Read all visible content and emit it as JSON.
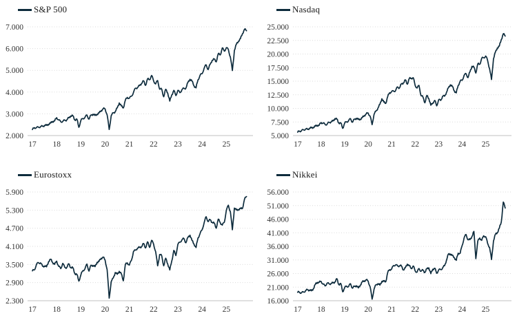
{
  "page": {
    "background": "#ffffff"
  },
  "style": {
    "line_color": "#0d2b3c",
    "grid_color": "#d9d9d9",
    "axis_color": "#c0c0c0",
    "tick_label_color": "#333333",
    "legend_text_color": "#1a1a1a",
    "grid_style": "dotted-horizontal"
  },
  "chart_data": [
    {
      "type": "line",
      "title": "S&P 500",
      "legend_position": "top-left",
      "grid": "horizontal-dotted",
      "x_start_year": 2017,
      "x_step_months": 1,
      "xlim": [
        2016.8,
        2026.1
      ],
      "ylim": [
        2000,
        7000
      ],
      "ytick_values": [
        7000,
        6000,
        5000,
        4000,
        3000,
        2000
      ],
      "ytick_labels": [
        "7.000",
        "6.000",
        "5.000",
        "4.000",
        "3.000",
        "2.000"
      ],
      "xtick_values": [
        2017,
        2018,
        2019,
        2020,
        2021,
        2022,
        2023,
        2024,
        2025
      ],
      "xtick_labels": [
        "17",
        "18",
        "19",
        "20",
        "21",
        "22",
        "23",
        "24",
        "25"
      ],
      "values": [
        2275,
        2364,
        2363,
        2384,
        2412,
        2423,
        2470,
        2472,
        2519,
        2575,
        2648,
        2674,
        2824,
        2714,
        2641,
        2648,
        2705,
        2718,
        2816,
        2902,
        2914,
        2712,
        2760,
        2380,
        2704,
        2784,
        2834,
        2946,
        2752,
        2942,
        2980,
        2926,
        2977,
        3038,
        3141,
        3231,
        3226,
        2954,
        2280,
        2912,
        3044,
        3100,
        3271,
        3500,
        3363,
        3270,
        3622,
        3756,
        3714,
        3811,
        3973,
        4181,
        4204,
        4298,
        4395,
        4523,
        4308,
        4605,
        4567,
        4766,
        4516,
        4374,
        4530,
        4132,
        4132,
        3785,
        4130,
        3955,
        3586,
        3872,
        4080,
        3840,
        4077,
        3970,
        4109,
        4169,
        4180,
        4450,
        4589,
        4508,
        4288,
        4194,
        4568,
        4770,
        4846,
        5096,
        5254,
        5036,
        5278,
        5460,
        5522,
        5390,
        5762,
        5705,
        6032,
        5882,
        6041,
        5955,
        5612,
        4990,
        5912,
        6205,
        6340,
        6460,
        6688,
        6890,
        6820
      ]
    },
    {
      "type": "line",
      "title": "Nasdaq",
      "legend_position": "top-left",
      "grid": "horizontal-dotted",
      "x_start_year": 2017,
      "x_step_months": 1,
      "xlim": [
        2016.8,
        2026.1
      ],
      "ylim": [
        5000,
        25000
      ],
      "ytick_values": [
        25000,
        22500,
        20000,
        17500,
        15000,
        12500,
        10000,
        7500,
        5000
      ],
      "ytick_labels": [
        "25.000",
        "22.500",
        "20.000",
        "17.500",
        "15.000",
        "12.500",
        "10.000",
        "7.500",
        "5.000"
      ],
      "xtick_values": [
        2017,
        2018,
        2019,
        2020,
        2021,
        2022,
        2023,
        2024,
        2025
      ],
      "xtick_labels": [
        "17",
        "18",
        "19",
        "20",
        "21",
        "22",
        "23",
        "24",
        "25"
      ],
      "values": [
        5614,
        5825,
        5912,
        6048,
        6199,
        6140,
        6348,
        6429,
        6496,
        6728,
        6874,
        6903,
        7411,
        7273,
        7063,
        7066,
        7442,
        7510,
        7672,
        8110,
        8046,
        7306,
        7331,
        6330,
        7282,
        7533,
        7729,
        8095,
        7453,
        8006,
        8175,
        7963,
        7999,
        8292,
        8665,
        8973,
        9151,
        8567,
        7000,
        8890,
        9490,
        10059,
        10745,
        11775,
        11168,
        10912,
        12199,
        12888,
        13071,
        13192,
        13247,
        13963,
        13749,
        14504,
        14673,
        15259,
        14449,
        15498,
        15538,
        15645,
        14240,
        13751,
        14221,
        12335,
        12081,
        11029,
        12391,
        11816,
        10576,
        10988,
        11468,
        10466,
        11585,
        11456,
        12222,
        12227,
        12935,
        13788,
        14346,
        14035,
        13219,
        12851,
        14226,
        15011,
        15164,
        16092,
        16379,
        15658,
        16735,
        17733,
        17599,
        16500,
        18189,
        18095,
        19218,
        19311,
        19627,
        18847,
        17299,
        15300,
        19114,
        20370,
        21122,
        21456,
        22660,
        23725,
        23300
      ]
    },
    {
      "type": "line",
      "title": "Eurostoxx",
      "legend_position": "top-left",
      "grid": "horizontal-dotted",
      "x_start_year": 2017,
      "x_step_months": 1,
      "xlim": [
        2016.8,
        2026.1
      ],
      "ylim": [
        2300,
        5900
      ],
      "ytick_values": [
        5900,
        5300,
        4700,
        4100,
        3500,
        2900,
        2300
      ],
      "ytick_labels": [
        "5.900",
        "5.300",
        "4.700",
        "4.100",
        "3.500",
        "2.900",
        "2.300"
      ],
      "xtick_values": [
        2017,
        2018,
        2019,
        2020,
        2021,
        2022,
        2023,
        2024,
        2025
      ],
      "xtick_labels": [
        "17",
        "18",
        "19",
        "20",
        "21",
        "22",
        "23",
        "24",
        "25"
      ],
      "values": [
        3290,
        3320,
        3501,
        3560,
        3555,
        3442,
        3450,
        3421,
        3595,
        3674,
        3570,
        3504,
        3609,
        3439,
        3362,
        3537,
        3407,
        3396,
        3525,
        3393,
        3399,
        3197,
        3173,
        2950,
        3159,
        3298,
        3352,
        3515,
        3280,
        3474,
        3467,
        3427,
        3569,
        3604,
        3704,
        3745,
        3641,
        3329,
        2385,
        2928,
        3050,
        3234,
        3174,
        3273,
        3193,
        2958,
        3493,
        3553,
        3481,
        3636,
        3919,
        3974,
        4039,
        4064,
        4089,
        4196,
        4048,
        4251,
        4063,
        4298,
        4175,
        3924,
        3455,
        3830,
        3789,
        3455,
        3708,
        3517,
        3318,
        3618,
        3965,
        3794,
        4163,
        4238,
        4315,
        4359,
        4218,
        4399,
        4471,
        4297,
        4175,
        4061,
        4382,
        4522,
        4648,
        4878,
        5083,
        4921,
        4983,
        4894,
        4872,
        4700,
        5000,
        4885,
        4804,
        4896,
        5287,
        5463,
        5248,
        4650,
        5366,
        5303,
        5319,
        5351,
        5356,
        5662,
        5750
      ]
    },
    {
      "type": "line",
      "title": "Nikkei",
      "legend_position": "top-left",
      "grid": "horizontal-dotted",
      "x_start_year": 2017,
      "x_step_months": 1,
      "xlim": [
        2016.8,
        2026.1
      ],
      "ylim": [
        16000,
        56000
      ],
      "ytick_values": [
        56000,
        51000,
        46000,
        41000,
        36000,
        31000,
        26000,
        21000,
        16000
      ],
      "ytick_labels": [
        "56.000",
        "51.000",
        "46.000",
        "41.000",
        "36.000",
        "31.000",
        "26.000",
        "21.000",
        "16.000"
      ],
      "xtick_values": [
        2017,
        2018,
        2019,
        2020,
        2021,
        2022,
        2023,
        2024,
        2025
      ],
      "xtick_labels": [
        "17",
        "18",
        "19",
        "20",
        "21",
        "22",
        "23",
        "24",
        "25"
      ],
      "values": [
        19100,
        19119,
        18909,
        19197,
        19651,
        20033,
        19925,
        19646,
        20356,
        22012,
        22725,
        22765,
        23098,
        22068,
        21454,
        22468,
        22202,
        22305,
        22554,
        22865,
        24120,
        21920,
        22351,
        19300,
        20773,
        21385,
        21206,
        22259,
        20601,
        21276,
        21522,
        20704,
        21756,
        22927,
        23294,
        23657,
        23205,
        21143,
        16553,
        20194,
        21878,
        22288,
        21710,
        23140,
        23185,
        22977,
        26434,
        27444,
        27663,
        28966,
        29179,
        28813,
        28860,
        28792,
        27284,
        28090,
        29453,
        28893,
        27822,
        28792,
        27002,
        26527,
        27821,
        26848,
        27280,
        26393,
        27802,
        28092,
        25937,
        27587,
        27969,
        26095,
        27327,
        27446,
        28041,
        28856,
        30888,
        33189,
        33172,
        32619,
        31858,
        30859,
        33487,
        33464,
        36287,
        39166,
        40369,
        38406,
        38488,
        39583,
        41500,
        31458,
        37920,
        39081,
        38208,
        39895,
        39572,
        37156,
        35618,
        31137,
        37965,
        40487,
        41070,
        42718,
        44932,
        52300,
        50100
      ]
    }
  ]
}
